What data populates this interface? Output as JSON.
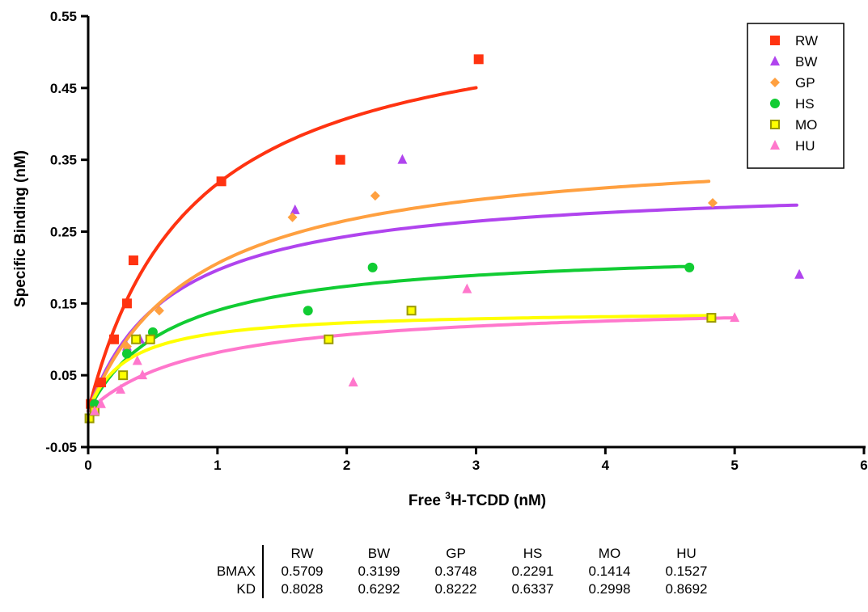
{
  "chart_data": {
    "type": "scatter",
    "xlabel_parts": [
      "Free ",
      "3",
      "H-TCDD (nM)"
    ],
    "ylabel": "Specific Binding (nM)",
    "xlim": [
      0,
      6
    ],
    "ylim": [
      -0.05,
      0.55
    ],
    "x_ticks": [
      0,
      1,
      2,
      3,
      4,
      5,
      6
    ],
    "y_ticks": [
      -0.05,
      0.05,
      0.15,
      0.25,
      0.35,
      0.45,
      0.55
    ],
    "x_tick_labels": [
      "0",
      "1",
      "2",
      "3",
      "4",
      "5",
      "6"
    ],
    "y_tick_labels": [
      "-0.05",
      "0.05",
      "0.15",
      "0.25",
      "0.35",
      "0.45",
      "0.55"
    ],
    "grid": false,
    "legend_position": "top-right",
    "series": [
      {
        "name": "RW",
        "color": "#ff3311",
        "marker": "square",
        "fit_max_x": 3.0,
        "points": [
          [
            0.02,
            0.01
          ],
          [
            0.1,
            0.04
          ],
          [
            0.2,
            0.1
          ],
          [
            0.3,
            0.15
          ],
          [
            0.35,
            0.21
          ],
          [
            1.03,
            0.32
          ],
          [
            1.95,
            0.35
          ],
          [
            3.02,
            0.49
          ]
        ]
      },
      {
        "name": "BW",
        "color": "#b044ee",
        "marker": "triangle",
        "fit_max_x": 5.48,
        "points": [
          [
            0.05,
            0.01
          ],
          [
            0.3,
            0.09
          ],
          [
            0.4,
            0.1
          ],
          [
            1.6,
            0.28
          ],
          [
            2.43,
            0.35
          ],
          [
            5.5,
            0.19
          ]
        ]
      },
      {
        "name": "GP",
        "color": "#ffa040",
        "marker": "diamond",
        "fit_max_x": 4.8,
        "points": [
          [
            0.05,
            0.01
          ],
          [
            0.3,
            0.09
          ],
          [
            0.55,
            0.14
          ],
          [
            1.58,
            0.27
          ],
          [
            2.22,
            0.3
          ],
          [
            4.83,
            0.29
          ]
        ]
      },
      {
        "name": "HS",
        "color": "#11cc33",
        "marker": "circle",
        "fit_max_x": 4.65,
        "points": [
          [
            0.05,
            0.01
          ],
          [
            0.3,
            0.08
          ],
          [
            0.5,
            0.11
          ],
          [
            1.7,
            0.14
          ],
          [
            2.2,
            0.2
          ],
          [
            4.65,
            0.2
          ]
        ]
      },
      {
        "name": "MO",
        "color": "#ffff00",
        "marker": "open-square",
        "fit_max_x": 4.8,
        "points": [
          [
            0.01,
            -0.01
          ],
          [
            0.05,
            0.0
          ],
          [
            0.27,
            0.05
          ],
          [
            0.37,
            0.1
          ],
          [
            0.48,
            0.1
          ],
          [
            1.86,
            0.1
          ],
          [
            2.5,
            0.14
          ],
          [
            4.82,
            0.13
          ]
        ]
      },
      {
        "name": "HU",
        "color": "#ff77cc",
        "marker": "triangle",
        "fit_max_x": 5.0,
        "points": [
          [
            0.05,
            0.0
          ],
          [
            0.1,
            0.01
          ],
          [
            0.25,
            0.03
          ],
          [
            0.38,
            0.07
          ],
          [
            0.42,
            0.05
          ],
          [
            2.05,
            0.04
          ],
          [
            2.93,
            0.17
          ],
          [
            5.0,
            0.13
          ]
        ]
      }
    ]
  },
  "table": {
    "columns": [
      "RW",
      "BW",
      "GP",
      "HS",
      "MO",
      "HU"
    ],
    "rows": [
      {
        "label": "BMAX",
        "values": [
          "0.5709",
          "0.3199",
          "0.3748",
          "0.2291",
          "0.1414",
          "0.1527"
        ]
      },
      {
        "label": "KD",
        "values": [
          "0.8028",
          "0.6292",
          "0.8222",
          "0.6337",
          "0.2998",
          "0.8692"
        ]
      }
    ]
  }
}
